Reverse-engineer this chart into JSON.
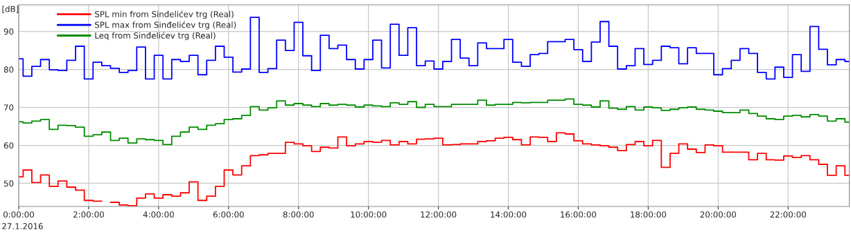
{
  "chart_data": {
    "type": "step",
    "ylabel": "[dB]",
    "x": [
      0,
      0.25,
      0.5,
      0.75,
      1,
      1.25,
      1.5,
      1.75,
      2,
      2.25,
      2.5,
      2.75,
      3,
      3.25,
      3.5,
      3.75,
      4,
      4.25,
      4.5,
      4.75,
      5,
      5.25,
      5.5,
      5.75,
      6,
      6.25,
      6.5,
      6.75,
      7,
      7.25,
      7.5,
      7.75,
      8,
      8.25,
      8.5,
      8.75,
      9,
      9.25,
      9.5,
      9.75,
      10,
      10.25,
      10.5,
      10.75,
      11,
      11.25,
      11.5,
      11.75,
      12,
      12.25,
      12.5,
      12.75,
      13,
      13.25,
      13.5,
      13.75,
      14,
      14.25,
      14.5,
      14.75,
      15,
      15.25,
      15.5,
      15.75,
      16,
      16.25,
      16.5,
      16.75,
      17,
      17.25,
      17.5,
      17.75,
      18,
      18.25,
      18.5,
      18.75,
      19,
      19.25,
      19.5,
      19.75,
      20,
      20.25,
      20.5,
      20.75,
      21,
      21.25,
      21.5,
      21.75,
      22,
      22.25,
      22.5,
      22.75,
      23,
      23.25,
      23.5,
      23.75
    ],
    "series": [
      {
        "name": "SPL min from Sinđelićev trg (Real)",
        "color": "#ff0000",
        "values": [
          51.7,
          53.5,
          50.2,
          52.2,
          49.2,
          50.6,
          49.0,
          48.2,
          45.5,
          45.3,
          null,
          45.0,
          44.3,
          44.1,
          46.1,
          47.2,
          46.1,
          47.0,
          46.6,
          47.5,
          50.4,
          45.5,
          46.6,
          49.2,
          53.5,
          52.2,
          54.6,
          57.3,
          57.5,
          57.9,
          57.9,
          60.8,
          60.4,
          59.9,
          58.4,
          59.5,
          59.3,
          62.2,
          59.9,
          60.4,
          61.0,
          60.8,
          61.3,
          60.1,
          61.0,
          60.4,
          61.6,
          61.7,
          61.9,
          60.1,
          60.2,
          60.4,
          60.4,
          61.0,
          61.2,
          61.9,
          62.1,
          61.5,
          60.1,
          62.2,
          62.1,
          61.0,
          63.3,
          63.0,
          61.2,
          60.4,
          60.1,
          59.9,
          59.5,
          58.6,
          60.2,
          61.0,
          59.9,
          61.3,
          54.2,
          57.9,
          60.4,
          59.0,
          58.1,
          60.1,
          59.9,
          58.2,
          58.2,
          58.2,
          56.2,
          57.9,
          56.2,
          56.1,
          57.2,
          56.8,
          57.3,
          56.2,
          55.0,
          52.1,
          54.6,
          52.1
        ]
      },
      {
        "name": "SPL max from Sinđelićev trg (Real)",
        "color": "#0000ff",
        "values": [
          82.8,
          78.2,
          80.8,
          82.6,
          79.9,
          79.7,
          82.4,
          86.1,
          77.5,
          81.9,
          81.0,
          80.3,
          79.2,
          79.7,
          85.9,
          77.5,
          83.7,
          77.5,
          82.6,
          82.1,
          83.7,
          78.6,
          82.4,
          86.1,
          83.2,
          79.3,
          80.1,
          93.7,
          79.2,
          80.2,
          87.7,
          85.0,
          92.4,
          83.6,
          79.7,
          89.0,
          85.5,
          86.4,
          82.6,
          80.1,
          82.6,
          87.7,
          80.4,
          91.9,
          83.7,
          91.0,
          81.0,
          82.2,
          80.1,
          82.1,
          87.9,
          83.0,
          81.0,
          87.0,
          85.5,
          85.5,
          87.9,
          81.9,
          80.8,
          83.9,
          84.2,
          87.3,
          87.3,
          87.9,
          85.2,
          82.1,
          87.2,
          92.6,
          86.1,
          80.1,
          81.0,
          85.5,
          81.3,
          82.4,
          86.1,
          85.7,
          81.5,
          85.7,
          84.2,
          84.2,
          78.6,
          80.2,
          82.4,
          85.5,
          84.2,
          79.2,
          77.5,
          80.6,
          77.9,
          83.9,
          79.5,
          91.3,
          85.3,
          81.2,
          82.6,
          82.1
        ]
      },
      {
        "name": "Leq from Sinđelićev trg (Real)",
        "color": "#008c00",
        "values": [
          66.2,
          65.9,
          66.4,
          66.8,
          64.2,
          65.3,
          65.2,
          64.8,
          62.4,
          62.8,
          63.5,
          61.3,
          61.9,
          60.6,
          61.7,
          61.5,
          61.3,
          60.2,
          62.4,
          63.5,
          64.8,
          64.2,
          65.3,
          65.7,
          66.8,
          67.0,
          67.9,
          70.2,
          69.3,
          69.9,
          71.7,
          70.6,
          71.0,
          70.6,
          70.2,
          71.0,
          70.6,
          70.8,
          70.6,
          70.1,
          70.6,
          70.4,
          70.2,
          71.2,
          70.8,
          71.5,
          70.0,
          70.8,
          70.2,
          70.2,
          70.8,
          70.8,
          70.8,
          71.9,
          70.6,
          70.8,
          70.8,
          71.3,
          71.2,
          71.3,
          71.3,
          71.9,
          71.9,
          72.2,
          70.8,
          70.6,
          70.1,
          71.7,
          69.8,
          69.5,
          70.2,
          69.3,
          70.1,
          69.9,
          69.2,
          69.5,
          69.9,
          70.1,
          69.5,
          69.3,
          69.0,
          68.6,
          68.6,
          69.3,
          68.4,
          67.7,
          67.0,
          66.8,
          67.7,
          67.9,
          67.5,
          68.1,
          67.7,
          66.4,
          67.0,
          66.1
        ]
      }
    ],
    "xlim": [
      0,
      23.75
    ],
    "xticks": [
      {
        "value": 0,
        "label": "0:00:00"
      },
      {
        "value": 2,
        "label": "2:00:00"
      },
      {
        "value": 4,
        "label": "4:00:00"
      },
      {
        "value": 6,
        "label": "6:00:00"
      },
      {
        "value": 8,
        "label": "8:00:00"
      },
      {
        "value": 10,
        "label": "10:00:00"
      },
      {
        "value": 12,
        "label": "12:00:00"
      },
      {
        "value": 14,
        "label": "14:00:00"
      },
      {
        "value": 16,
        "label": "16:00:00"
      },
      {
        "value": 18,
        "label": "18:00:00"
      },
      {
        "value": 20,
        "label": "20:00:00"
      },
      {
        "value": 22,
        "label": "22:00:00"
      }
    ],
    "ylim": [
      43.9,
      97
    ],
    "yticks": [
      50,
      60,
      70,
      80,
      90
    ],
    "grid": true,
    "legend": "top left",
    "annotations": [
      "27.1.2016"
    ]
  }
}
